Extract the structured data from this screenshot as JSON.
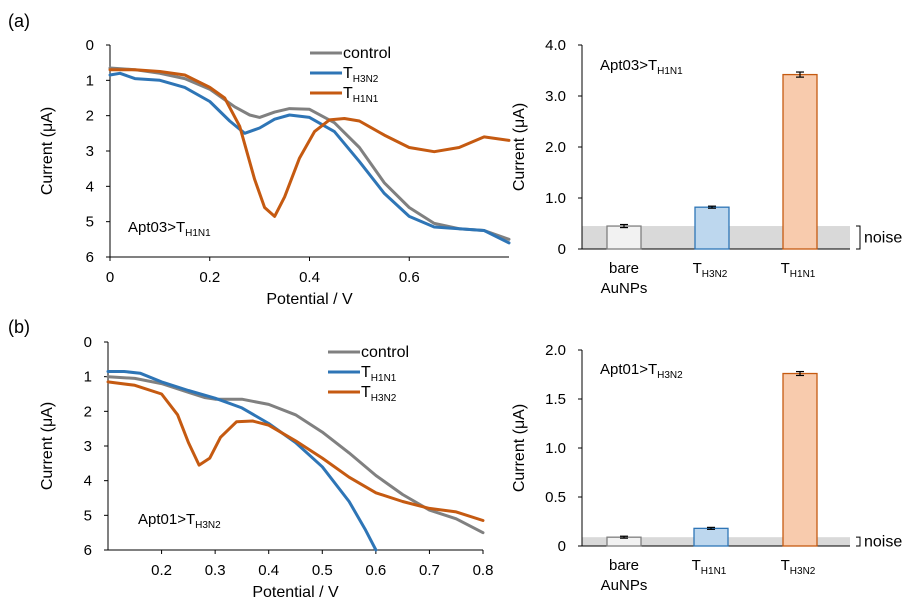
{
  "panels": {
    "a": {
      "label": "(a)"
    },
    "b": {
      "label": "(b)"
    }
  },
  "noise_label": "noise",
  "chart_data": [
    {
      "id": "a-line",
      "type": "line",
      "xlabel": "Potential / V",
      "ylabel": "Current (μA)",
      "xlim": [
        0,
        0.8
      ],
      "ylim": [
        0,
        6
      ],
      "y_inverted": true,
      "xticks": [
        "0",
        "0.2",
        "0.4",
        "0.6"
      ],
      "yticks": [
        "0",
        "1",
        "2",
        "3",
        "4",
        "5",
        "6"
      ],
      "annotation": {
        "main": "Apt03>T",
        "sub": "H1N1"
      },
      "series": [
        {
          "name": "control",
          "label_main": "control",
          "label_sub": "",
          "color": "#808080",
          "x": [
            0,
            0.05,
            0.1,
            0.15,
            0.2,
            0.25,
            0.28,
            0.3,
            0.33,
            0.36,
            0.4,
            0.45,
            0.5,
            0.55,
            0.6,
            0.65,
            0.7,
            0.75,
            0.8
          ],
          "y": [
            0.65,
            0.7,
            0.8,
            0.95,
            1.25,
            1.75,
            1.98,
            2.05,
            1.9,
            1.8,
            1.82,
            2.2,
            2.9,
            3.9,
            4.6,
            5.05,
            5.2,
            5.25,
            5.5
          ]
        },
        {
          "name": "TH3N2",
          "label_main": "T",
          "label_sub": "H3N2",
          "color": "#2E75B6",
          "x": [
            0,
            0.02,
            0.05,
            0.1,
            0.15,
            0.2,
            0.24,
            0.27,
            0.3,
            0.33,
            0.36,
            0.4,
            0.45,
            0.5,
            0.55,
            0.6,
            0.65,
            0.7,
            0.75,
            0.8
          ],
          "y": [
            0.85,
            0.8,
            0.95,
            1.0,
            1.2,
            1.6,
            2.15,
            2.5,
            2.35,
            2.1,
            1.98,
            2.05,
            2.45,
            3.3,
            4.2,
            4.85,
            5.15,
            5.2,
            5.25,
            5.6
          ]
        },
        {
          "name": "TH1N1",
          "label_main": "T",
          "label_sub": "H1N1",
          "color": "#C55A11",
          "x": [
            0,
            0.05,
            0.1,
            0.15,
            0.2,
            0.23,
            0.26,
            0.29,
            0.31,
            0.33,
            0.35,
            0.38,
            0.41,
            0.44,
            0.47,
            0.5,
            0.55,
            0.6,
            0.65,
            0.7,
            0.75,
            0.8
          ],
          "y": [
            0.7,
            0.7,
            0.75,
            0.85,
            1.2,
            1.5,
            2.3,
            3.8,
            4.6,
            4.85,
            4.3,
            3.2,
            2.45,
            2.12,
            2.08,
            2.15,
            2.55,
            2.9,
            3.02,
            2.9,
            2.6,
            2.7
          ]
        }
      ]
    },
    {
      "id": "a-bar",
      "type": "bar",
      "xlabel": "",
      "ylabel": "Current (μA)",
      "ylim": [
        0,
        4.0
      ],
      "yticks": [
        "0",
        "1.0",
        "2.0",
        "3.0",
        "4.0"
      ],
      "noise_level": 0.45,
      "annotation": {
        "main": "Apt03>T",
        "sub": "H1N1"
      },
      "categories": [
        {
          "lines": [
            "bare",
            "AuNPs"
          ],
          "main": "",
          "sub": ""
        },
        {
          "lines": [],
          "main": "T",
          "sub": "H3N2"
        },
        {
          "lines": [],
          "main": "T",
          "sub": "H1N1"
        }
      ],
      "values": [
        0.45,
        0.82,
        3.42
      ],
      "errors": [
        0.03,
        0.02,
        0.05
      ],
      "colors": [
        "#F2F2F2",
        "#BDD7EE",
        "#F8CBAD"
      ],
      "edge_colors": [
        "#7F7F7F",
        "#2E75B6",
        "#C55A11"
      ]
    },
    {
      "id": "b-line",
      "type": "line",
      "xlabel": "Potential / V",
      "ylabel": "Current (μA)",
      "xlim": [
        0.1,
        0.8
      ],
      "ylim": [
        0,
        6
      ],
      "y_inverted": true,
      "xticks": [
        "0.2",
        "0.3",
        "0.4",
        "0.5",
        "0.6",
        "0.7",
        "0.8"
      ],
      "yticks": [
        "0",
        "1",
        "2",
        "3",
        "4",
        "5",
        "6"
      ],
      "annotation": {
        "main": "Apt01>T",
        "sub": "H3N2"
      },
      "series": [
        {
          "name": "control",
          "label_main": "control",
          "label_sub": "",
          "color": "#808080",
          "x": [
            0.1,
            0.15,
            0.2,
            0.25,
            0.28,
            0.3,
            0.35,
            0.4,
            0.45,
            0.5,
            0.55,
            0.6,
            0.65,
            0.7,
            0.75,
            0.8
          ],
          "y": [
            1.0,
            1.05,
            1.2,
            1.45,
            1.6,
            1.65,
            1.65,
            1.8,
            2.1,
            2.6,
            3.2,
            3.85,
            4.4,
            4.85,
            5.1,
            5.5
          ]
        },
        {
          "name": "TH1N1",
          "label_main": "T",
          "label_sub": "H1N1",
          "color": "#2E75B6",
          "x": [
            0.1,
            0.13,
            0.16,
            0.2,
            0.25,
            0.3,
            0.35,
            0.4,
            0.45,
            0.5,
            0.55,
            0.58,
            0.6
          ],
          "y": [
            0.85,
            0.85,
            0.9,
            1.15,
            1.4,
            1.62,
            1.9,
            2.35,
            2.9,
            3.6,
            4.6,
            5.4,
            6.0
          ]
        },
        {
          "name": "TH3N2",
          "label_main": "T",
          "label_sub": "H3N2",
          "color": "#C55A11",
          "x": [
            0.1,
            0.15,
            0.2,
            0.23,
            0.25,
            0.27,
            0.29,
            0.31,
            0.34,
            0.37,
            0.4,
            0.45,
            0.5,
            0.55,
            0.6,
            0.65,
            0.7,
            0.75,
            0.8
          ],
          "y": [
            1.15,
            1.25,
            1.5,
            2.1,
            2.9,
            3.55,
            3.35,
            2.75,
            2.3,
            2.28,
            2.4,
            2.85,
            3.35,
            3.9,
            4.35,
            4.6,
            4.8,
            4.9,
            5.15
          ]
        }
      ]
    },
    {
      "id": "b-bar",
      "type": "bar",
      "xlabel": "",
      "ylabel": "Current (μA)",
      "ylim": [
        0,
        2.0
      ],
      "yticks": [
        "0",
        "0.5",
        "1.0",
        "1.5",
        "2.0"
      ],
      "noise_level": 0.09,
      "annotation": {
        "main": "Apt01>T",
        "sub": "H3N2"
      },
      "categories": [
        {
          "lines": [
            "bare",
            "AuNPs"
          ],
          "main": "",
          "sub": ""
        },
        {
          "lines": [],
          "main": "T",
          "sub": "H1N1"
        },
        {
          "lines": [],
          "main": "T",
          "sub": "H3N2"
        }
      ],
      "values": [
        0.09,
        0.18,
        1.76
      ],
      "errors": [
        0.01,
        0.01,
        0.02
      ],
      "colors": [
        "#F2F2F2",
        "#BDD7EE",
        "#F8CBAD"
      ],
      "edge_colors": [
        "#7F7F7F",
        "#2E75B6",
        "#C55A11"
      ]
    }
  ]
}
